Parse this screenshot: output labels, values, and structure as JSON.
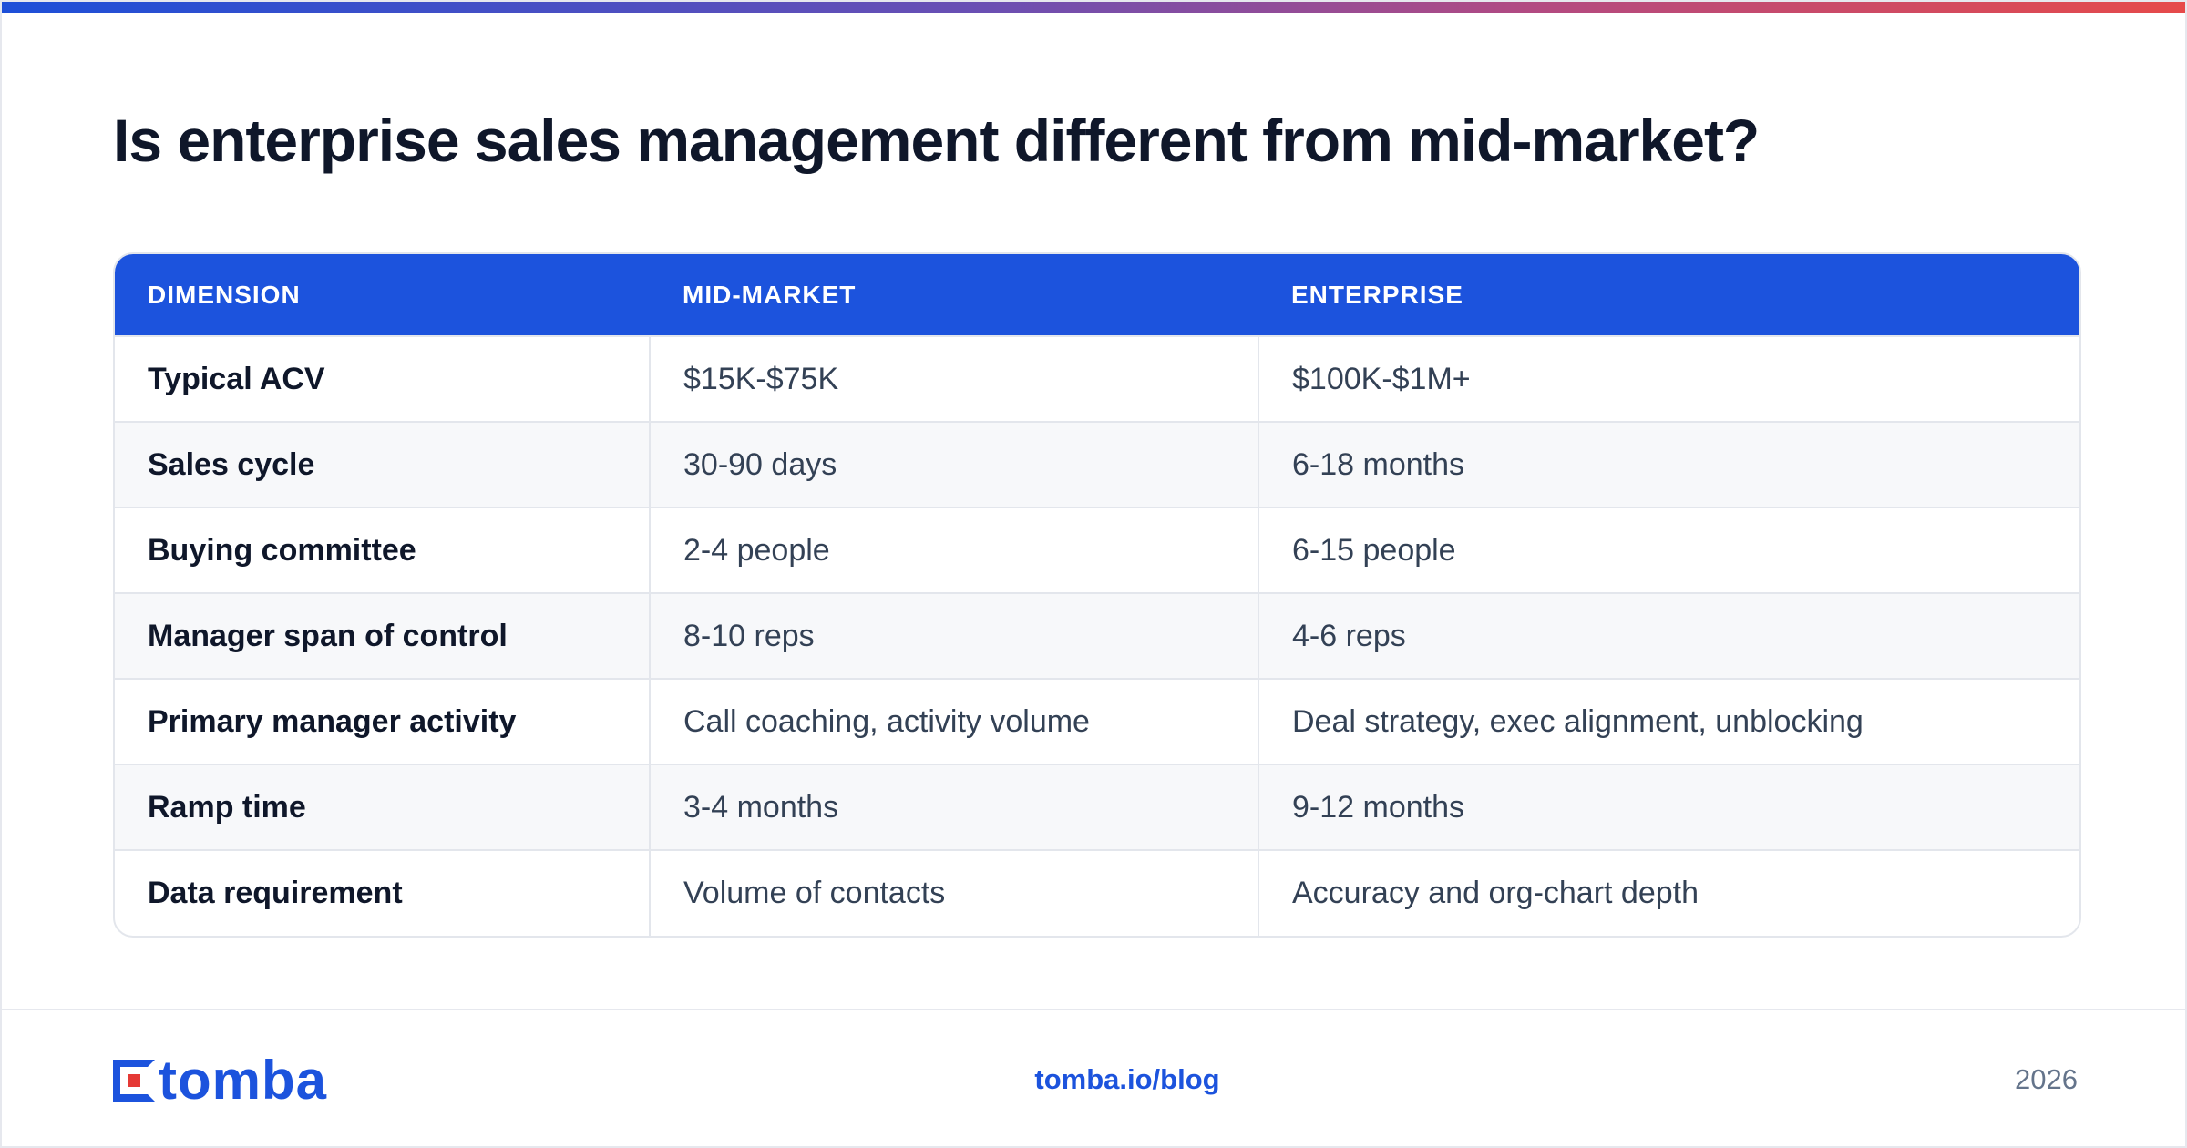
{
  "title": "Is enterprise sales management different from mid-market?",
  "table": {
    "headers": [
      "DIMENSION",
      "MID-MARKET",
      "ENTERPRISE"
    ],
    "rows": [
      {
        "dimension": "Typical ACV",
        "mid_market": "$15K-$75K",
        "enterprise": "$100K-$1M+"
      },
      {
        "dimension": "Sales cycle",
        "mid_market": "30-90 days",
        "enterprise": "6-18 months"
      },
      {
        "dimension": "Buying committee",
        "mid_market": "2-4 people",
        "enterprise": "6-15 people"
      },
      {
        "dimension": "Manager span of control",
        "mid_market": "8-10 reps",
        "enterprise": "4-6 reps"
      },
      {
        "dimension": "Primary manager activity",
        "mid_market": "Call coaching, activity volume",
        "enterprise": "Deal strategy, exec alignment, unblocking"
      },
      {
        "dimension": "Ramp time",
        "mid_market": "3-4 months",
        "enterprise": "9-12 months"
      },
      {
        "dimension": "Data requirement",
        "mid_market": "Volume of contacts",
        "enterprise": "Accuracy and org-chart depth"
      }
    ]
  },
  "footer": {
    "logo_text": "tomba",
    "logo_icon": "tomba-logo-icon",
    "link": "tomba.io/blog",
    "year": "2026"
  },
  "colors": {
    "accent": "#1c53dd",
    "logo_red": "#e53935",
    "title": "#0f172a",
    "text": "#334155"
  }
}
